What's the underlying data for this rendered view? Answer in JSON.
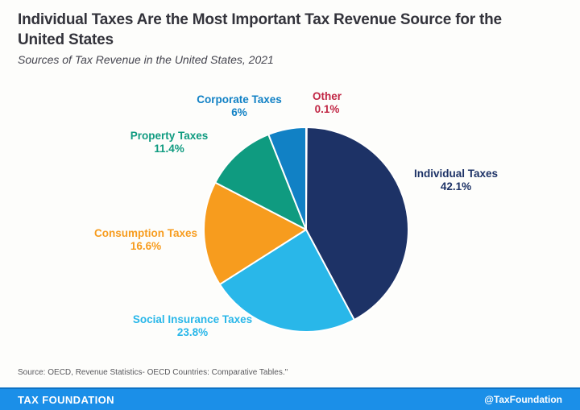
{
  "header": {
    "title": "Individual Taxes Are the Most Important Tax Revenue Source for the United States",
    "subtitle": "Sources of Tax Revenue in the United States, 2021"
  },
  "chart_data": {
    "type": "pie",
    "title": "Sources of Tax Revenue in the United States, 2021",
    "start_angle_deg": 0,
    "direction": "clockwise",
    "legend_position": "labels-around-pie",
    "slices": [
      {
        "label": "Other",
        "value": 0.1,
        "display": "0.1%",
        "color": "#c12745"
      },
      {
        "label": "Individual Taxes",
        "value": 42.1,
        "display": "42.1%",
        "color": "#1d3266"
      },
      {
        "label": "Social Insurance Taxes",
        "value": 23.8,
        "display": "23.8%",
        "color": "#29b7e9"
      },
      {
        "label": "Consumption Taxes",
        "value": 16.6,
        "display": "16.6%",
        "color": "#f79c1e"
      },
      {
        "label": "Property Taxes",
        "value": 11.4,
        "display": "11.4%",
        "color": "#0f9b80"
      },
      {
        "label": "Corporate Taxes",
        "value": 6,
        "display": "6%",
        "color": "#1181c5"
      }
    ]
  },
  "source_note": "Source: OECD, Revenue Statistics- OECD Countries: Comparative Tables.\"",
  "footer": {
    "brand": "TAX FOUNDATION",
    "handle": "@TaxFoundation",
    "bar_color": "#1b8fe8"
  }
}
